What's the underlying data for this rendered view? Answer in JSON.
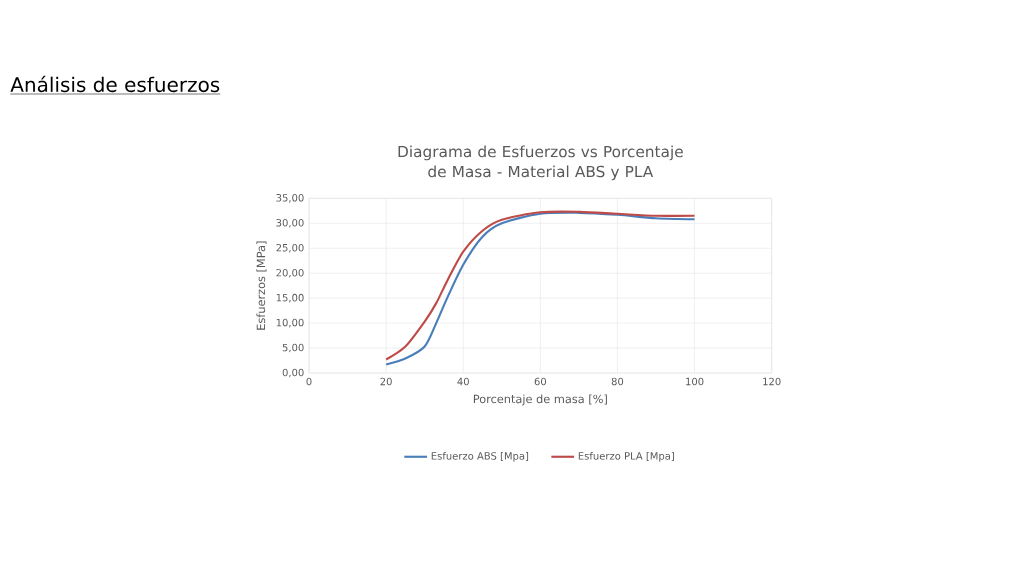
{
  "chart_data": {
    "type": "line",
    "title": "Diagrama de Esfuerzos vs Porcentaje de Masa - Material ABS y PLA",
    "annotations": [
      "Análisis de esfuerzos"
    ],
    "xlabel": "Porcentaje de masa [%]",
    "ylabel": "Esfuerzos [MPa]",
    "xlim": [
      0,
      120
    ],
    "xticks": [
      0,
      20,
      40,
      60,
      80,
      100,
      120
    ],
    "ylim": [
      0,
      35
    ],
    "yticks": [
      {
        "value": 0,
        "label": "0,00"
      },
      {
        "value": 5,
        "label": "5,00"
      },
      {
        "value": 10,
        "label": "10,00"
      },
      {
        "value": 15,
        "label": "15,00"
      },
      {
        "value": 20,
        "label": "20,00"
      },
      {
        "value": 25,
        "label": "25,00"
      },
      {
        "value": 30,
        "label": "30,00"
      },
      {
        "value": 35,
        "label": "35,00"
      }
    ],
    "x": [
      20,
      25,
      30,
      33,
      36,
      40,
      45,
      50,
      60,
      70,
      80,
      90,
      100
    ],
    "series": [
      {
        "name": "Esfuerzo ABS [Mpa]",
        "color": "#4a7ebb",
        "values": [
          1.7,
          2.9,
          5.3,
          10,
          15.3,
          21.7,
          27.3,
          30,
          31.9,
          32.1,
          31.7,
          31,
          30.8
        ]
      },
      {
        "name": "Esfuerzo PLA [Mpa]",
        "color": "#be4b48",
        "values": [
          2.7,
          5.3,
          10.3,
          14,
          18.7,
          24.3,
          28.5,
          30.7,
          32.2,
          32.3,
          31.9,
          31.5,
          31.5
        ]
      }
    ],
    "grid": true,
    "legend": "bottom",
    "marker": "none",
    "line_style": "solid"
  }
}
